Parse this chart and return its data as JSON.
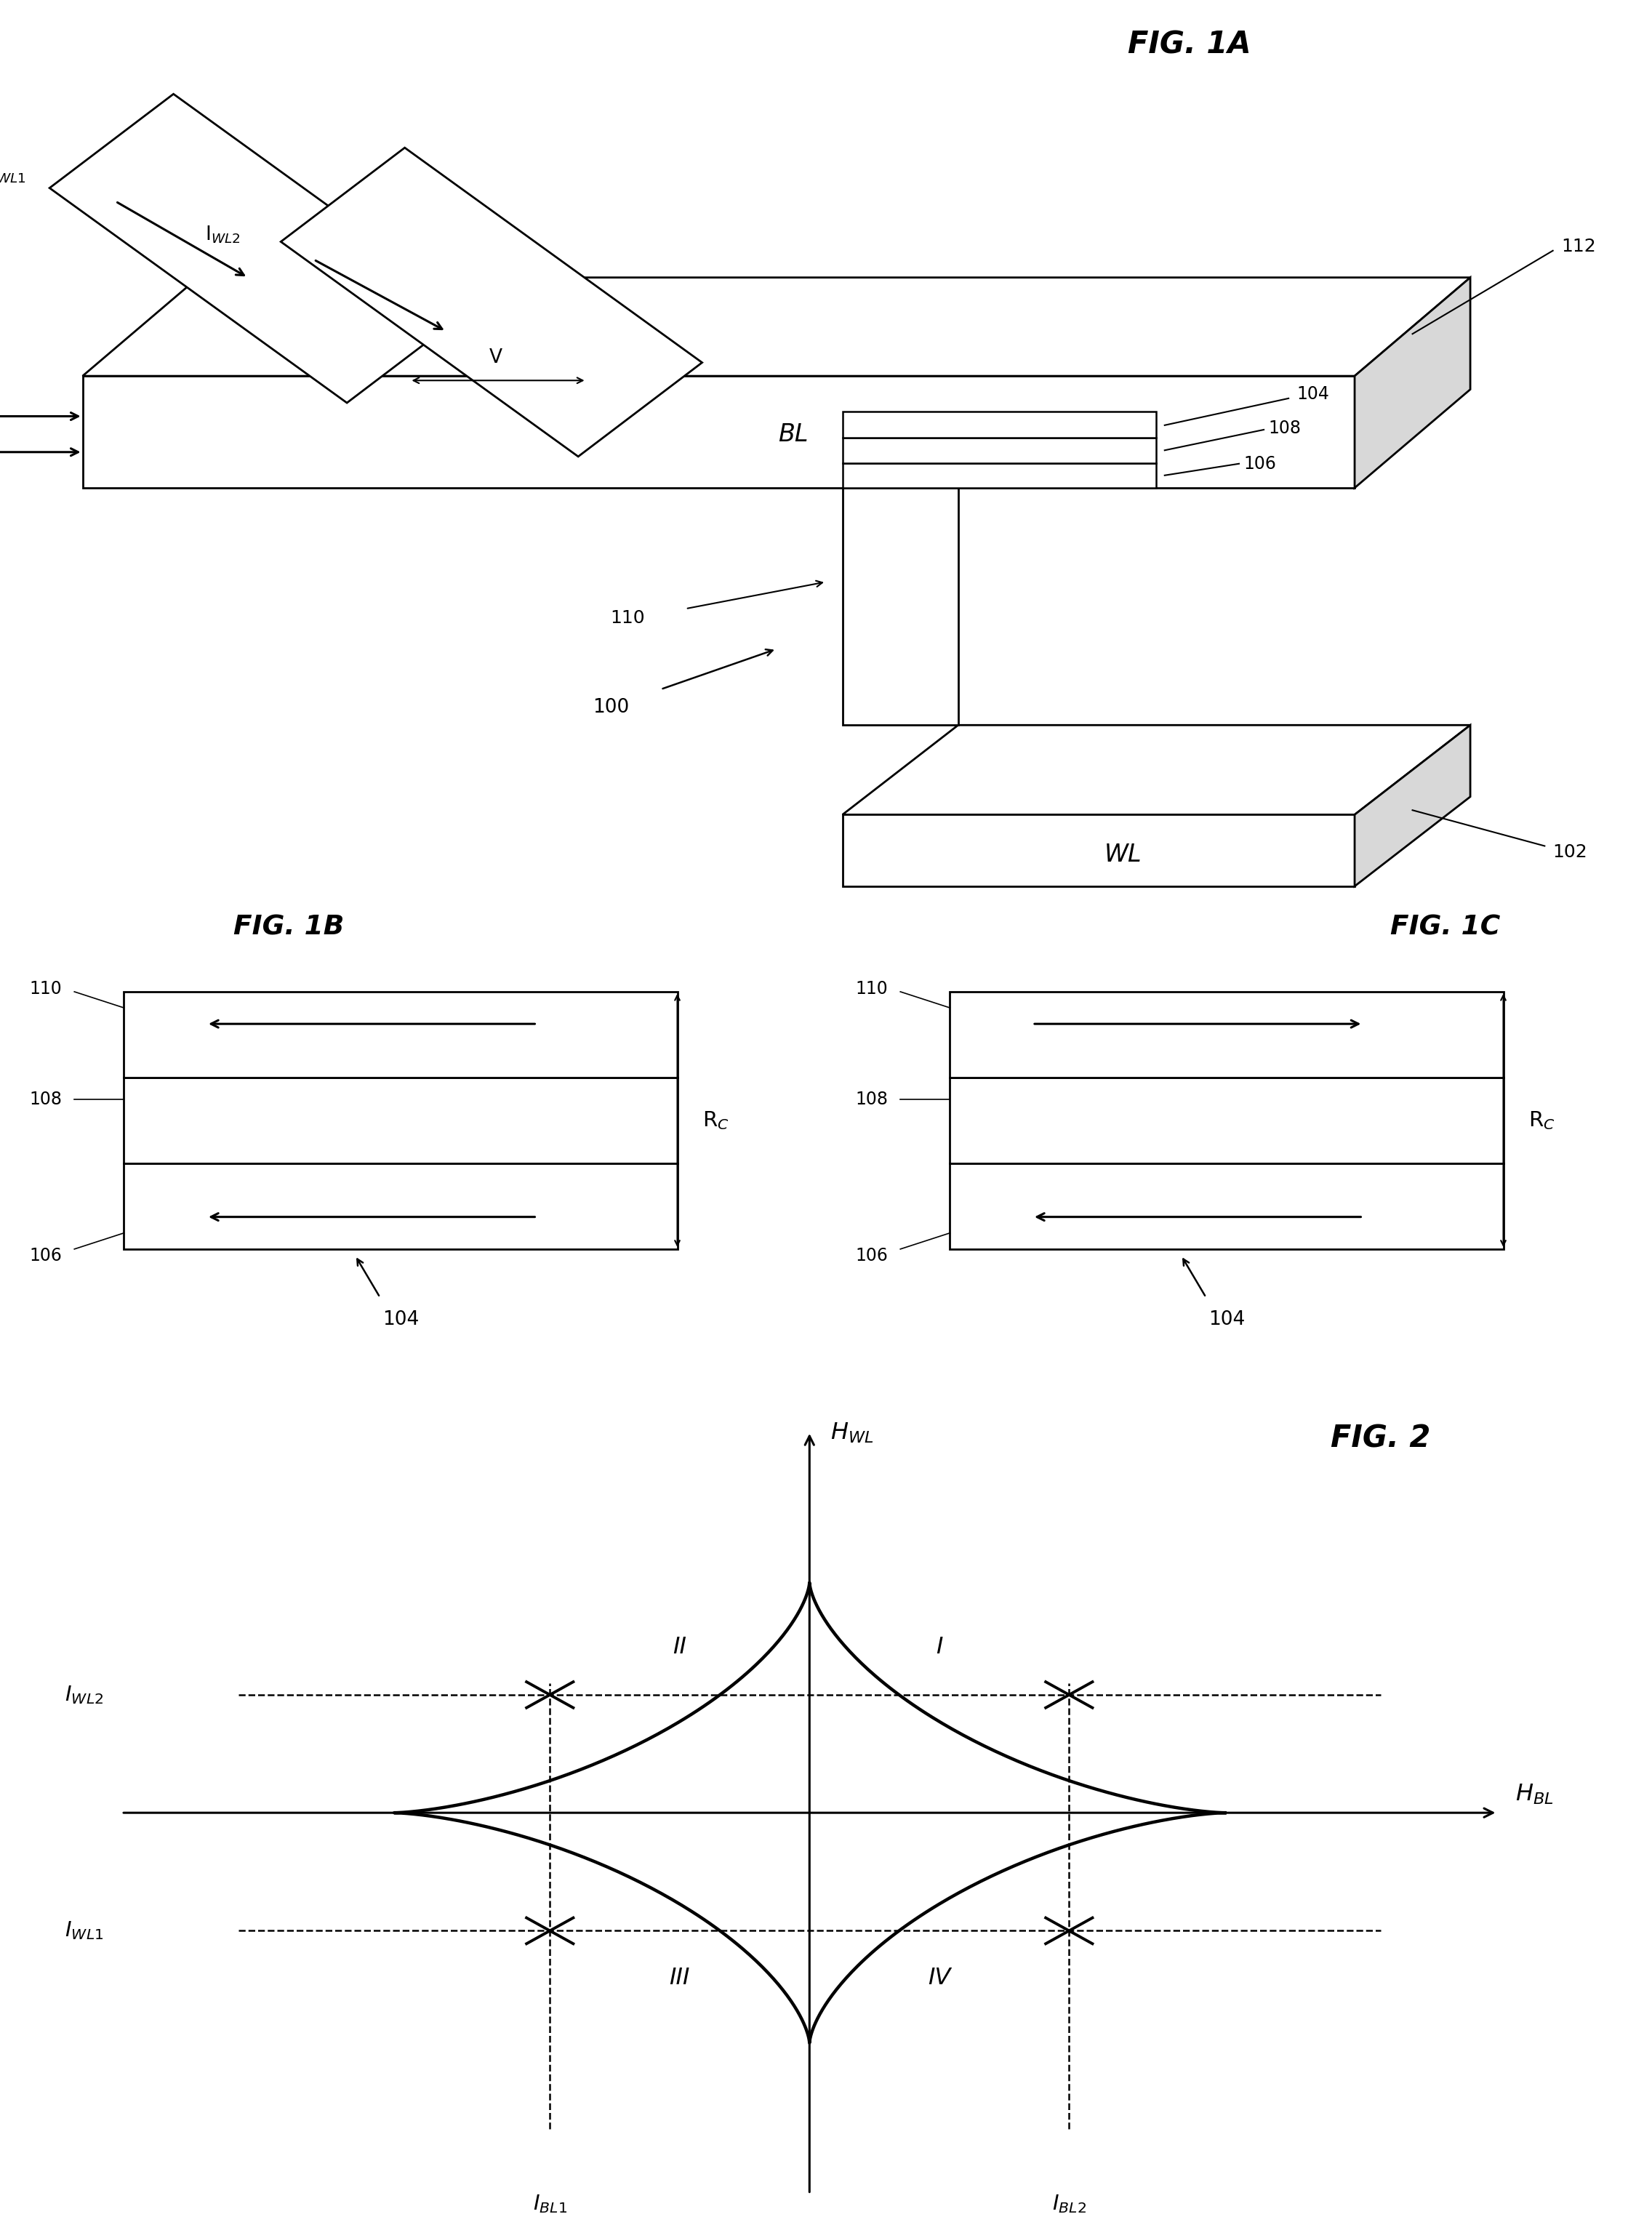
{
  "background_color": "#ffffff",
  "line_color": "#000000",
  "fig1a_label": "FIG. 1A",
  "fig1b_label": "FIG. 1B",
  "fig1c_label": "FIG. 1C",
  "fig2_label": "FIG. 2"
}
